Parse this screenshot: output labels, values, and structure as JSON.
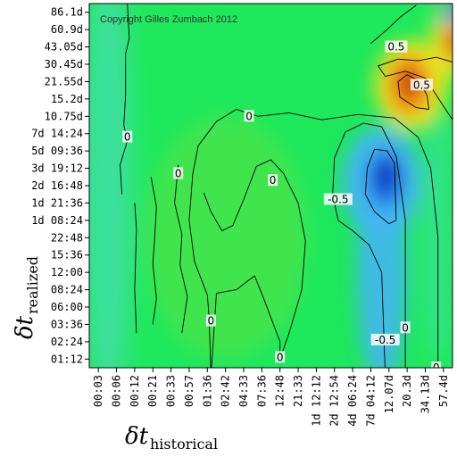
{
  "chart_data": {
    "type": "heatmap",
    "copyright": "Copyright Gilles Zumbach 2012",
    "xlabel_main": "δt",
    "xlabel_sub": "historical",
    "ylabel_main": "δt",
    "ylabel_sub": "realized",
    "x_ticks": [
      "00:03",
      "00:06",
      "00:12",
      "00:21",
      "00:33",
      "00:57",
      "01:36",
      "02:42",
      "04:33",
      "07:36",
      "12:48",
      "21:33",
      "1d 12:12",
      "2d 12:54",
      "4d 06:24",
      "7d 04:12",
      "12.07d",
      "20.3d",
      "34.13d",
      "57.4d"
    ],
    "y_ticks": [
      "86.1d",
      "60.9d",
      "43.05d",
      "30.45d",
      "21.55d",
      "15.2d",
      "10.75d",
      "7d 14:24",
      "5d 09:36",
      "3d 19:12",
      "2d 16:48",
      "1d 21:36",
      "1d 08:24",
      "22:48",
      "15:36",
      "12:00",
      "08:24",
      "06:00",
      "03:36",
      "02:24",
      "01:12"
    ],
    "contour_levels": [
      -0.5,
      0,
      0.5
    ],
    "contour_labels": [
      {
        "text": "0",
        "x": 1.6,
        "y": 7.2
      },
      {
        "text": "0",
        "x": 4.4,
        "y": 9.3
      },
      {
        "text": "0",
        "x": 6.2,
        "y": 17.8
      },
      {
        "text": "0",
        "x": 8.3,
        "y": 6.0
      },
      {
        "text": "0",
        "x": 9.6,
        "y": 9.7
      },
      {
        "text": "0",
        "x": 10.0,
        "y": 19.9
      },
      {
        "text": "0",
        "x": 16.9,
        "y": 18.2
      },
      {
        "text": "0",
        "x": 18.6,
        "y": 20.5
      },
      {
        "text": "-0.5",
        "x": 13.2,
        "y": 10.8
      },
      {
        "text": "-0.5",
        "x": 15.8,
        "y": 18.9
      },
      {
        "text": "0.5",
        "x": 16.4,
        "y": 2.0
      },
      {
        "text": "0.5",
        "x": 17.8,
        "y": 4.2
      }
    ],
    "colorscale": [
      "#0a2fb8",
      "#1e66e6",
      "#43b7f2",
      "#3fe0a0",
      "#1ee85c",
      "#7fe031",
      "#f2e71c",
      "#f39215",
      "#c8200a"
    ],
    "value_range": [
      -1,
      1
    ],
    "grid": false,
    "legend": "none"
  }
}
